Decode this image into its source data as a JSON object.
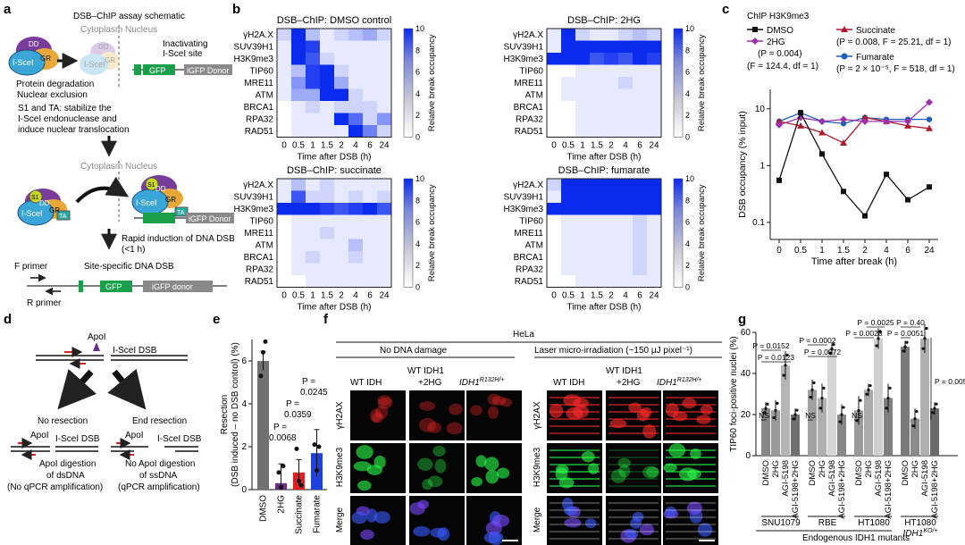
{
  "panel_letters": [
    "a",
    "b",
    "c",
    "d",
    "e",
    "f",
    "g"
  ],
  "colors": {
    "blue": "#1f3fe0",
    "green": "#1aa04a",
    "red": "#e02020",
    "purple": "#6a2c8a",
    "teal": "#2aa8a0",
    "dd": "#7a3c9a",
    "gr": "#e8a838",
    "nucleus": "#3aa6d8",
    "s1": "#c8d820"
  },
  "a": {
    "title": "DSB–ChIP assay schematic",
    "cytoplasm": "Cytoplasm",
    "nucleus": "Nucleus",
    "iscel": "I-SceI",
    "dd": "DD",
    "gr": "GR",
    "s1": "S1",
    "ta": "TA",
    "degradation": "Protein degradation",
    "exclusion": "Nuclear exclusion",
    "inactivating_1": "Inactivating",
    "inactivating_2": "I-SceI site",
    "gfp": "GFP",
    "igfp_donor": "iGFP Donor",
    "igfp_donor_lc": "iGFP donor",
    "stabilize_1": "S1 and TA: stabilize the",
    "stabilize_2": "I-SceI endonuclease and",
    "stabilize_3": "induce nuclear translocation",
    "rapid_1": "Rapid induction of DNA DSB",
    "rapid_2": "(<1 h)",
    "f_primer": "F primer",
    "r_primer": "R primer",
    "site_specific": "Site-specific DNA DSB"
  },
  "b": {
    "rows": [
      "γH2A.X",
      "SUV39H1",
      "H3K9me3",
      "TIP60",
      "MRE11",
      "ATM",
      "BRCA1",
      "RPA32",
      "RAD51"
    ],
    "cols": [
      "0",
      "0.5",
      "1",
      "1.5",
      "2",
      "4",
      "6",
      "24"
    ],
    "xlabel": "Time after DSB (h)",
    "cbar_label": "Relative break occupancy",
    "cbar_ticks": [
      "0",
      "2",
      "4",
      "6",
      "8",
      "10"
    ],
    "heatmaps": [
      {
        "title": "DSB–ChIP: DMSO control",
        "values": [
          [
            2,
            10,
            3,
            1,
            2,
            3,
            4,
            2
          ],
          [
            1,
            10,
            9,
            1,
            1,
            1,
            1,
            1
          ],
          [
            1,
            10,
            8,
            2,
            1,
            1,
            1,
            1
          ],
          [
            1,
            3,
            9,
            10,
            2,
            1,
            1,
            1
          ],
          [
            1,
            5,
            9,
            10,
            4,
            1,
            1,
            1
          ],
          [
            1,
            4,
            4,
            10,
            10,
            2,
            1,
            1
          ],
          [
            0,
            1,
            2,
            1,
            2,
            2,
            2,
            1
          ],
          [
            0,
            1,
            1,
            1,
            10,
            7,
            2,
            5
          ],
          [
            0,
            1,
            1,
            1,
            1,
            10,
            6,
            2
          ]
        ]
      },
      {
        "title": "DSB–ChIP: 2HG",
        "values": [
          [
            1,
            10,
            2,
            1,
            1,
            2,
            3,
            2
          ],
          [
            1,
            10,
            10,
            10,
            10,
            10,
            10,
            10
          ],
          [
            10,
            10,
            10,
            8,
            9,
            8,
            10,
            9
          ],
          [
            0,
            0,
            1,
            1,
            1,
            1,
            1,
            1
          ],
          [
            0,
            1,
            1,
            1,
            1,
            2,
            1,
            1
          ],
          [
            0,
            1,
            1,
            1,
            1,
            1,
            1,
            1
          ],
          [
            0,
            0,
            1,
            1,
            1,
            1,
            1,
            1
          ],
          [
            0,
            0,
            1,
            1,
            1,
            1,
            1,
            1
          ],
          [
            0,
            0,
            1,
            1,
            1,
            1,
            1,
            1
          ]
        ]
      },
      {
        "title": "DSB–ChIP: succinate",
        "values": [
          [
            1,
            3,
            1,
            2,
            1,
            1,
            1,
            1
          ],
          [
            1,
            8,
            2,
            2,
            1,
            2,
            1,
            2
          ],
          [
            10,
            10,
            10,
            9,
            8,
            9,
            10,
            8
          ],
          [
            0,
            1,
            1,
            1,
            1,
            1,
            1,
            1
          ],
          [
            0,
            1,
            1,
            2,
            1,
            1,
            1,
            1
          ],
          [
            0,
            1,
            1,
            1,
            1,
            3,
            1,
            1
          ],
          [
            0,
            1,
            2,
            1,
            1,
            2,
            1,
            1
          ],
          [
            0,
            1,
            1,
            1,
            1,
            1,
            1,
            1
          ],
          [
            0,
            0,
            1,
            1,
            1,
            1,
            1,
            1
          ]
        ]
      },
      {
        "title": "DSB–ChIP: fumarate",
        "values": [
          [
            2,
            10,
            10,
            10,
            10,
            10,
            10,
            10
          ],
          [
            1,
            10,
            10,
            10,
            10,
            10,
            10,
            10
          ],
          [
            10,
            10,
            10,
            10,
            10,
            10,
            10,
            10
          ],
          [
            0,
            1,
            1,
            1,
            1,
            1,
            2,
            1
          ],
          [
            0,
            1,
            1,
            1,
            1,
            1,
            2,
            1
          ],
          [
            0,
            1,
            1,
            1,
            1,
            1,
            2,
            1
          ],
          [
            0,
            1,
            1,
            1,
            1,
            1,
            2,
            1
          ],
          [
            0,
            1,
            1,
            1,
            1,
            1,
            2,
            1
          ],
          [
            0,
            0,
            1,
            1,
            1,
            1,
            1,
            1
          ]
        ]
      }
    ]
  },
  "c": {
    "chip": "ChIP H3K9me3",
    "leg_dmso": "DMSO",
    "leg_2hg": "2HG",
    "leg_succ": "Succinate",
    "leg_fum": "Fumarate",
    "stat_2hg_1": "(P = 0.004)",
    "stat_2hg_2": "(F = 124.4, df = 1)",
    "stat_succ": "(P = 0.008, F = 25.21, df = 1)",
    "stat_fum": "(P = 2 × 10⁻⁵, F = 518, df = 1)",
    "ylabel": "DSB occupancy (% input)",
    "xlabel": "Time after break (h)",
    "yticks": [
      "0.1",
      "1",
      "10"
    ]
  },
  "chart_data": [
    {
      "type": "line",
      "title": "ChIP H3K9me3",
      "xlabel": "Time after break (h)",
      "ylabel": "DSB occupancy (% input)",
      "y_scale": "log",
      "ylim": [
        0.05,
        22
      ],
      "categories": [
        "0",
        "0.5",
        "1",
        "1.5",
        "2",
        "4",
        "6",
        "24"
      ],
      "series": [
        {
          "name": "DMSO",
          "color": "#111111",
          "values": [
            0.55,
            8.5,
            1.6,
            0.35,
            0.13,
            0.7,
            0.25,
            0.42
          ]
        },
        {
          "name": "2HG",
          "color": "#9b30b0",
          "values": [
            5.2,
            7.0,
            6.0,
            6.5,
            6.0,
            6.0,
            6.0,
            13
          ]
        },
        {
          "name": "Succinate",
          "color": "#b0182e",
          "values": [
            6.0,
            5.0,
            3.8,
            2.5,
            7.0,
            6.0,
            5.0,
            4.5
          ]
        },
        {
          "name": "Fumarate",
          "color": "#1f5fbf",
          "values": [
            6.0,
            8.5,
            6.0,
            5.5,
            7.0,
            6.5,
            6.5,
            6.5
          ]
        }
      ]
    },
    {
      "type": "bar",
      "xlabel": "",
      "ylabel": "Resection (DSB induced – no DSB control) (%)",
      "ylim": [
        0,
        7
      ],
      "yticks": [
        0,
        2,
        4,
        6
      ],
      "categories": [
        "DMSO",
        "2HG",
        "Succinate",
        "Fumarate"
      ],
      "values": [
        6.0,
        0.3,
        0.8,
        1.7
      ],
      "colors": [
        "#707070",
        "#6a2c8a",
        "#e02020",
        "#2040e0"
      ],
      "annotations": [
        "P = 0.0068",
        "P = 0.0359",
        "P = 0.0245"
      ]
    },
    {
      "type": "bar",
      "ylabel": "TIP60 foci-positive nuclei (%)",
      "ylim": [
        0,
        60
      ],
      "yticks": [
        0,
        20,
        40,
        60
      ],
      "groups": [
        {
          "name": "SNU1079",
          "categories": [
            "DMSO",
            "2HG",
            "AGI-5198",
            "AGI-5198+2HG"
          ],
          "values": [
            23,
            22,
            44,
            20
          ],
          "annotations": [
            "NS",
            "P = 0.0152",
            "P = 0.0123"
          ]
        },
        {
          "name": "RBE",
          "categories": [
            "DMSO",
            "2HG",
            "AGI-5198",
            "AGI-5198+2HG"
          ],
          "values": [
            32,
            28,
            52,
            20
          ],
          "annotations": [
            "NS",
            "P = 0.0002",
            "P = 0.0072"
          ]
        },
        {
          "name": "HT1080",
          "categories": [
            "DMSO",
            "2HG",
            "AGI-5198",
            "AGI-5198+2HG"
          ],
          "values": [
            22,
            32,
            57,
            28
          ],
          "annotations": [
            "NS",
            "P = 0.0028",
            "P = 0.0025"
          ]
        },
        {
          "name": "HT1080 IDH1KO/+",
          "categories": [
            "DMSO",
            "2HG",
            "AGI-5198",
            "AGI-5198+2HG"
          ],
          "values": [
            53,
            18,
            57,
            23
          ],
          "annotations": [
            "P = 0.0051",
            "P = 0.40",
            "P = 0.0051"
          ]
        }
      ]
    }
  ],
  "d": {
    "apoi": "ApoI",
    "iscel_dsb": "I-SceI DSB",
    "no_resection": "No resection",
    "end_resection": "End resection",
    "left_1": "ApoI digestion",
    "left_2": "of dsDNA",
    "left_3": "(No qPCR amplification)",
    "right_1": "No ApoI digestion",
    "right_2": "of ssDNA",
    "right_3": "(qPCR amplification)"
  },
  "e": {
    "ylabel_1": "Resection",
    "ylabel_2": "(DSB induced – no DSB control) (%)",
    "yticks": [
      "0",
      "2",
      "4",
      "6"
    ],
    "cats": [
      "DMSO",
      "2HG",
      "Succinate",
      "Fumarate"
    ],
    "p1": "P =",
    "p1v": "0.0068",
    "p2": "P =",
    "p2v": "0.0359",
    "p3": "P =",
    "p3v": "0.0245"
  },
  "f": {
    "hela": "HeLa",
    "no_damage": "No DNA damage",
    "laser": "Laser micro-irradiation (~150 μJ pixel⁻¹)",
    "wt_idh": "WT IDH",
    "wt_idh1_1": "WT IDH1",
    "wt_idh1_2": "+2HG",
    "mut_base": "IDH1",
    "mut_sup": "R132H/+",
    "row_labels": [
      "γH2AX",
      "H3K9me3",
      "Merge"
    ]
  },
  "g": {
    "ylabel": "TIP60 foci-positive nuclei (%)",
    "yticks": [
      "0",
      "20",
      "40",
      "60"
    ],
    "cats": [
      "DMSO",
      "2HG",
      "AGI-5198",
      "AGI-5198+2HG"
    ],
    "groups": [
      "SNU1079",
      "RBE",
      "HT1080"
    ],
    "g4_base": "HT1080",
    "g4_line2": "IDH1",
    "g4_sup": "KO/+",
    "footer": "Endogenous IDH1 mutants",
    "ns": "NS",
    "p_snu_1": "P = 0.0152",
    "p_snu_2": "P = 0.0123",
    "p_rbe_1": "P = 0.0002",
    "p_rbe_2": "P = 0.0072",
    "p_ht_1": "P = 0.0028",
    "p_ht_2": "P = 0.0025",
    "p_ko_1": "P = 0.40",
    "p_ko_2": "P = 0.0051",
    "p_ko_3": "P = 0.0051"
  }
}
